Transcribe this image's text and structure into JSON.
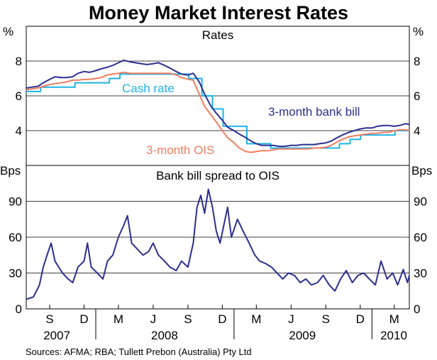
{
  "chart_data": [
    {
      "type": "line",
      "title": "Money Market Interest Rates",
      "panel_title": "Rates",
      "y_unit": "%",
      "ylim": [
        2,
        10
      ],
      "y_ticks": [
        4,
        6,
        8
      ],
      "x_tick_labels": [
        "S",
        "D",
        "M",
        "J",
        "S",
        "D",
        "M",
        "J",
        "S",
        "D",
        "M"
      ],
      "year_labels": [
        "2007",
        "2008",
        "2009",
        "2010"
      ],
      "series": [
        {
          "name": "3-month bank bill",
          "color": "#2b2f8f",
          "points": [
            [
              "2007-07-01",
              6.45
            ],
            [
              "2007-07-15",
              6.5
            ],
            [
              "2007-08-01",
              6.55
            ],
            [
              "2007-08-15",
              6.75
            ],
            [
              "2007-09-01",
              6.95
            ],
            [
              "2007-09-15",
              7.1
            ],
            [
              "2007-10-01",
              7.05
            ],
            [
              "2007-10-15",
              7.05
            ],
            [
              "2007-11-01",
              7.1
            ],
            [
              "2007-11-15",
              7.3
            ],
            [
              "2007-12-01",
              7.4
            ],
            [
              "2007-12-15",
              7.35
            ],
            [
              "2008-01-01",
              7.45
            ],
            [
              "2008-01-15",
              7.55
            ],
            [
              "2008-02-01",
              7.65
            ],
            [
              "2008-02-15",
              7.75
            ],
            [
              "2008-03-01",
              7.9
            ],
            [
              "2008-03-15",
              8.05
            ],
            [
              "2008-04-01",
              7.95
            ],
            [
              "2008-04-15",
              7.9
            ],
            [
              "2008-05-01",
              7.85
            ],
            [
              "2008-05-15",
              7.8
            ],
            [
              "2008-06-01",
              7.85
            ],
            [
              "2008-06-15",
              7.9
            ],
            [
              "2008-07-01",
              7.75
            ],
            [
              "2008-07-15",
              7.6
            ],
            [
              "2008-08-01",
              7.4
            ],
            [
              "2008-08-15",
              7.25
            ],
            [
              "2008-09-01",
              7.2
            ],
            [
              "2008-09-15",
              7.3
            ],
            [
              "2008-10-01",
              6.8
            ],
            [
              "2008-10-15",
              6.1
            ],
            [
              "2008-11-01",
              5.4
            ],
            [
              "2008-11-15",
              5.0
            ],
            [
              "2008-12-01",
              4.6
            ],
            [
              "2008-12-15",
              4.2
            ],
            [
              "2009-01-01",
              4.0
            ],
            [
              "2009-01-15",
              3.8
            ],
            [
              "2009-02-01",
              3.6
            ],
            [
              "2009-02-15",
              3.4
            ],
            [
              "2009-03-01",
              3.25
            ],
            [
              "2009-03-15",
              3.15
            ],
            [
              "2009-04-01",
              3.15
            ],
            [
              "2009-04-15",
              3.15
            ],
            [
              "2009-05-01",
              3.1
            ],
            [
              "2009-05-15",
              3.1
            ],
            [
              "2009-06-01",
              3.15
            ],
            [
              "2009-06-15",
              3.15
            ],
            [
              "2009-07-01",
              3.2
            ],
            [
              "2009-07-15",
              3.2
            ],
            [
              "2009-08-01",
              3.2
            ],
            [
              "2009-08-15",
              3.25
            ],
            [
              "2009-09-01",
              3.3
            ],
            [
              "2009-09-15",
              3.4
            ],
            [
              "2009-10-01",
              3.6
            ],
            [
              "2009-10-15",
              3.75
            ],
            [
              "2009-11-01",
              3.9
            ],
            [
              "2009-11-15",
              4.0
            ],
            [
              "2009-12-01",
              4.1
            ],
            [
              "2009-12-15",
              4.15
            ],
            [
              "2010-01-01",
              4.15
            ],
            [
              "2010-01-15",
              4.25
            ],
            [
              "2010-02-01",
              4.3
            ],
            [
              "2010-02-15",
              4.3
            ],
            [
              "2010-03-01",
              4.25
            ],
            [
              "2010-03-15",
              4.3
            ],
            [
              "2010-04-01",
              4.4
            ],
            [
              "2010-04-10",
              4.35
            ]
          ]
        },
        {
          "name": "3-month OIS",
          "color": "#f27d5e",
          "points": [
            [
              "2007-07-01",
              6.35
            ],
            [
              "2007-07-15",
              6.4
            ],
            [
              "2007-08-01",
              6.45
            ],
            [
              "2007-08-15",
              6.55
            ],
            [
              "2007-09-01",
              6.65
            ],
            [
              "2007-09-15",
              6.7
            ],
            [
              "2007-10-01",
              6.75
            ],
            [
              "2007-10-15",
              6.8
            ],
            [
              "2007-11-01",
              6.9
            ],
            [
              "2007-11-15",
              6.9
            ],
            [
              "2007-12-01",
              6.95
            ],
            [
              "2007-12-15",
              6.95
            ],
            [
              "2008-01-01",
              7.0
            ],
            [
              "2008-01-15",
              7.05
            ],
            [
              "2008-02-01",
              7.2
            ],
            [
              "2008-02-15",
              7.25
            ],
            [
              "2008-03-01",
              7.3
            ],
            [
              "2008-03-15",
              7.35
            ],
            [
              "2008-04-01",
              7.3
            ],
            [
              "2008-04-15",
              7.3
            ],
            [
              "2008-05-01",
              7.3
            ],
            [
              "2008-05-15",
              7.3
            ],
            [
              "2008-06-01",
              7.3
            ],
            [
              "2008-06-15",
              7.3
            ],
            [
              "2008-07-01",
              7.3
            ],
            [
              "2008-07-15",
              7.3
            ],
            [
              "2008-08-01",
              7.2
            ],
            [
              "2008-08-15",
              7.05
            ],
            [
              "2008-09-01",
              6.95
            ],
            [
              "2008-09-15",
              6.9
            ],
            [
              "2008-10-01",
              6.1
            ],
            [
              "2008-10-15",
              5.4
            ],
            [
              "2008-11-01",
              4.9
            ],
            [
              "2008-11-15",
              4.5
            ],
            [
              "2008-12-01",
              4.0
            ],
            [
              "2008-12-15",
              3.6
            ],
            [
              "2009-01-01",
              3.3
            ],
            [
              "2009-01-15",
              3.0
            ],
            [
              "2009-02-01",
              2.8
            ],
            [
              "2009-02-15",
              2.75
            ],
            [
              "2009-03-01",
              2.8
            ],
            [
              "2009-03-15",
              2.85
            ],
            [
              "2009-04-01",
              2.85
            ],
            [
              "2009-04-15",
              2.9
            ],
            [
              "2009-05-01",
              2.95
            ],
            [
              "2009-05-15",
              2.95
            ],
            [
              "2009-06-01",
              2.95
            ],
            [
              "2009-06-15",
              2.95
            ],
            [
              "2009-07-01",
              2.95
            ],
            [
              "2009-07-15",
              2.95
            ],
            [
              "2009-08-01",
              3.0
            ],
            [
              "2009-08-15",
              3.0
            ],
            [
              "2009-09-01",
              3.05
            ],
            [
              "2009-09-15",
              3.15
            ],
            [
              "2009-10-01",
              3.35
            ],
            [
              "2009-10-15",
              3.5
            ],
            [
              "2009-11-01",
              3.65
            ],
            [
              "2009-11-15",
              3.7
            ],
            [
              "2009-12-01",
              3.75
            ],
            [
              "2009-12-15",
              3.8
            ],
            [
              "2010-01-01",
              3.85
            ],
            [
              "2010-01-15",
              3.85
            ],
            [
              "2010-02-01",
              3.9
            ],
            [
              "2010-02-15",
              3.9
            ],
            [
              "2010-03-01",
              4.0
            ],
            [
              "2010-03-15",
              4.05
            ],
            [
              "2010-04-01",
              4.05
            ],
            [
              "2010-04-10",
              4.0
            ]
          ]
        },
        {
          "name": "Cash rate",
          "color": "#1fb3e6",
          "step": true,
          "points": [
            [
              "2007-07-01",
              6.25
            ],
            [
              "2007-08-08",
              6.5
            ],
            [
              "2007-11-07",
              6.75
            ],
            [
              "2008-02-06",
              7.0
            ],
            [
              "2008-03-05",
              7.25
            ],
            [
              "2008-09-03",
              7.0
            ],
            [
              "2008-10-08",
              6.0
            ],
            [
              "2008-11-05",
              5.25
            ],
            [
              "2008-12-03",
              4.25
            ],
            [
              "2009-02-04",
              3.25
            ],
            [
              "2009-04-08",
              3.0
            ],
            [
              "2009-10-07",
              3.25
            ],
            [
              "2009-11-04",
              3.5
            ],
            [
              "2009-12-02",
              3.75
            ],
            [
              "2010-03-03",
              4.0
            ],
            [
              "2010-04-10",
              4.0
            ]
          ]
        }
      ]
    },
    {
      "type": "line",
      "panel_title": "Bank bill spread to OIS",
      "y_unit": "Bps",
      "ylim": [
        0,
        120
      ],
      "y_ticks": [
        0,
        30,
        60,
        90
      ],
      "series": [
        {
          "name": "",
          "color": "#2b2f8f",
          "points": [
            [
              "2007-07-01",
              8
            ],
            [
              "2007-07-20",
              10
            ],
            [
              "2007-08-05",
              20
            ],
            [
              "2007-08-15",
              35
            ],
            [
              "2007-08-25",
              45
            ],
            [
              "2007-09-05",
              55
            ],
            [
              "2007-09-15",
              40
            ],
            [
              "2007-09-25",
              35
            ],
            [
              "2007-10-05",
              30
            ],
            [
              "2007-10-20",
              25
            ],
            [
              "2007-11-01",
              22
            ],
            [
              "2007-11-15",
              35
            ],
            [
              "2007-12-01",
              40
            ],
            [
              "2007-12-10",
              55
            ],
            [
              "2007-12-20",
              35
            ],
            [
              "2008-01-05",
              30
            ],
            [
              "2008-01-20",
              25
            ],
            [
              "2008-02-01",
              40
            ],
            [
              "2008-02-15",
              45
            ],
            [
              "2008-03-01",
              60
            ],
            [
              "2008-03-15",
              70
            ],
            [
              "2008-03-25",
              78
            ],
            [
              "2008-04-05",
              55
            ],
            [
              "2008-04-20",
              50
            ],
            [
              "2008-05-05",
              45
            ],
            [
              "2008-05-20",
              48
            ],
            [
              "2008-06-01",
              55
            ],
            [
              "2008-06-15",
              45
            ],
            [
              "2008-07-01",
              40
            ],
            [
              "2008-07-15",
              35
            ],
            [
              "2008-08-01",
              32
            ],
            [
              "2008-08-15",
              40
            ],
            [
              "2008-09-01",
              35
            ],
            [
              "2008-09-15",
              55
            ],
            [
              "2008-09-25",
              85
            ],
            [
              "2008-10-05",
              95
            ],
            [
              "2008-10-15",
              80
            ],
            [
              "2008-10-25",
              100
            ],
            [
              "2008-11-05",
              85
            ],
            [
              "2008-11-15",
              65
            ],
            [
              "2008-11-25",
              55
            ],
            [
              "2008-12-05",
              70
            ],
            [
              "2008-12-15",
              85
            ],
            [
              "2008-12-25",
              60
            ],
            [
              "2009-01-10",
              75
            ],
            [
              "2009-01-25",
              65
            ],
            [
              "2009-02-10",
              55
            ],
            [
              "2009-02-25",
              45
            ],
            [
              "2009-03-10",
              40
            ],
            [
              "2009-03-25",
              38
            ],
            [
              "2009-04-10",
              35
            ],
            [
              "2009-04-25",
              30
            ],
            [
              "2009-05-10",
              25
            ],
            [
              "2009-05-25",
              30
            ],
            [
              "2009-06-10",
              28
            ],
            [
              "2009-06-25",
              22
            ],
            [
              "2009-07-10",
              25
            ],
            [
              "2009-07-25",
              20
            ],
            [
              "2009-08-10",
              22
            ],
            [
              "2009-08-25",
              28
            ],
            [
              "2009-09-10",
              20
            ],
            [
              "2009-09-25",
              15
            ],
            [
              "2009-10-10",
              25
            ],
            [
              "2009-10-25",
              32
            ],
            [
              "2009-11-10",
              22
            ],
            [
              "2009-11-25",
              28
            ],
            [
              "2009-12-10",
              30
            ],
            [
              "2009-12-25",
              25
            ],
            [
              "2010-01-10",
              20
            ],
            [
              "2010-01-25",
              40
            ],
            [
              "2010-02-10",
              25
            ],
            [
              "2010-02-25",
              30
            ],
            [
              "2010-03-10",
              20
            ],
            [
              "2010-03-25",
              33
            ],
            [
              "2010-04-05",
              22
            ],
            [
              "2010-04-10",
              28
            ]
          ]
        }
      ]
    }
  ],
  "annotations": {
    "cash_rate": "Cash rate",
    "bank_bill": "3-month bank bill",
    "ois": "3-month OIS"
  },
  "source": "Sources: AFMA; RBA; Tullett Prebon (Australia) Pty Ltd"
}
